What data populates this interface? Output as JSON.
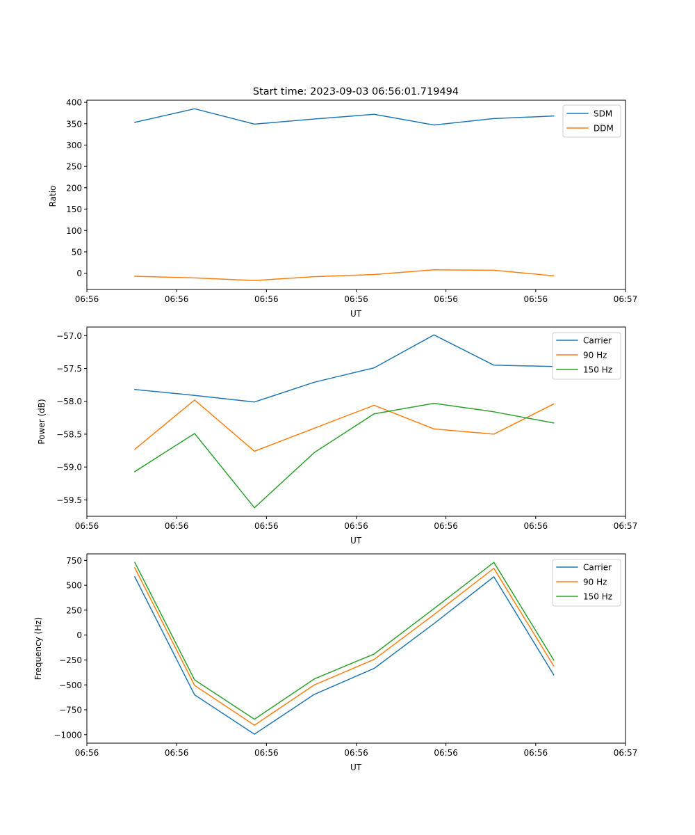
{
  "chart_data": [
    {
      "type": "line",
      "title": "Start time: 2023-09-03 06:56:01.719494",
      "xlabel": "UT",
      "ylabel": "Ratio",
      "x": [
        1,
        2,
        3,
        4,
        5,
        6,
        7,
        8
      ],
      "xlim": [
        0.2,
        9.2
      ],
      "xticks": [
        0.2,
        1.7,
        3.2,
        4.7,
        6.2,
        7.7,
        9.2
      ],
      "xtick_labels": [
        "06:56",
        "06:56",
        "06:56",
        "06:56",
        "06:56",
        "06:56",
        "06:57"
      ],
      "ylim": [
        -38,
        405
      ],
      "yticks": [
        0,
        50,
        100,
        150,
        200,
        250,
        300,
        350,
        400
      ],
      "ytick_labels": [
        "0",
        "50",
        "100",
        "150",
        "200",
        "250",
        "300",
        "350",
        "400"
      ],
      "legend": "top-right",
      "series": [
        {
          "name": "SDM",
          "color": "#1f77b4",
          "values": [
            353,
            385,
            349,
            361,
            372,
            347,
            362,
            368
          ]
        },
        {
          "name": "DDM",
          "color": "#ff7f0e",
          "values": [
            -7,
            -11,
            -17,
            -8,
            -3,
            8,
            7,
            -6
          ]
        }
      ]
    },
    {
      "type": "line",
      "title": "",
      "xlabel": "UT",
      "ylabel": "Power (dB)",
      "x": [
        1,
        2,
        3,
        4,
        5,
        6,
        7,
        8
      ],
      "xlim": [
        0.2,
        9.2
      ],
      "xticks": [
        0.2,
        1.7,
        3.2,
        4.7,
        6.2,
        7.7,
        9.2
      ],
      "xtick_labels": [
        "06:56",
        "06:56",
        "06:56",
        "06:56",
        "06:56",
        "06:56",
        "06:57"
      ],
      "ylim": [
        -59.75,
        -56.87
      ],
      "yticks": [
        -59.5,
        -59.0,
        -58.5,
        -58.0,
        -57.5,
        -57.0
      ],
      "ytick_labels": [
        "−59.5",
        "−59.0",
        "−58.5",
        "−58.0",
        "−57.5",
        "−57.0"
      ],
      "legend": "top-right",
      "series": [
        {
          "name": "Carrier",
          "color": "#1f77b4",
          "values": [
            -57.82,
            -57.91,
            -58.01,
            -57.71,
            -57.49,
            -56.99,
            -57.45,
            -57.47
          ]
        },
        {
          "name": "90 Hz",
          "color": "#ff7f0e",
          "values": [
            -58.73,
            -57.98,
            -58.76,
            -58.41,
            -58.06,
            -58.42,
            -58.5,
            -58.04
          ]
        },
        {
          "name": "150 Hz",
          "color": "#2ca02c",
          "values": [
            -59.07,
            -58.49,
            -59.62,
            -58.78,
            -58.19,
            -58.03,
            -58.16,
            -58.33
          ]
        }
      ]
    },
    {
      "type": "line",
      "title": "",
      "xlabel": "UT",
      "ylabel": "Frequency (Hz)",
      "x": [
        1,
        2,
        3,
        4,
        5,
        6,
        7,
        8
      ],
      "xlim": [
        0.2,
        9.2
      ],
      "xticks": [
        0.2,
        1.7,
        3.2,
        4.7,
        6.2,
        7.7,
        9.2
      ],
      "xtick_labels": [
        "06:56",
        "06:56",
        "06:56",
        "06:56",
        "06:56",
        "06:56",
        "06:57"
      ],
      "ylim": [
        -1085,
        815
      ],
      "yticks": [
        -1000,
        -750,
        -500,
        -250,
        0,
        250,
        500,
        750
      ],
      "ytick_labels": [
        "−1000",
        "−750",
        "−500",
        "−250",
        "0",
        "250",
        "500",
        "750"
      ],
      "legend": "top-right",
      "series": [
        {
          "name": "Carrier",
          "color": "#1f77b4",
          "values": [
            585,
            -600,
            -995,
            -595,
            -335,
            115,
            585,
            -400
          ]
        },
        {
          "name": "90 Hz",
          "color": "#ff7f0e",
          "values": [
            675,
            -505,
            -905,
            -500,
            -245,
            205,
            670,
            -310
          ]
        },
        {
          "name": "150 Hz",
          "color": "#2ca02c",
          "values": [
            730,
            -450,
            -845,
            -440,
            -190,
            265,
            730,
            -250
          ]
        }
      ]
    }
  ]
}
